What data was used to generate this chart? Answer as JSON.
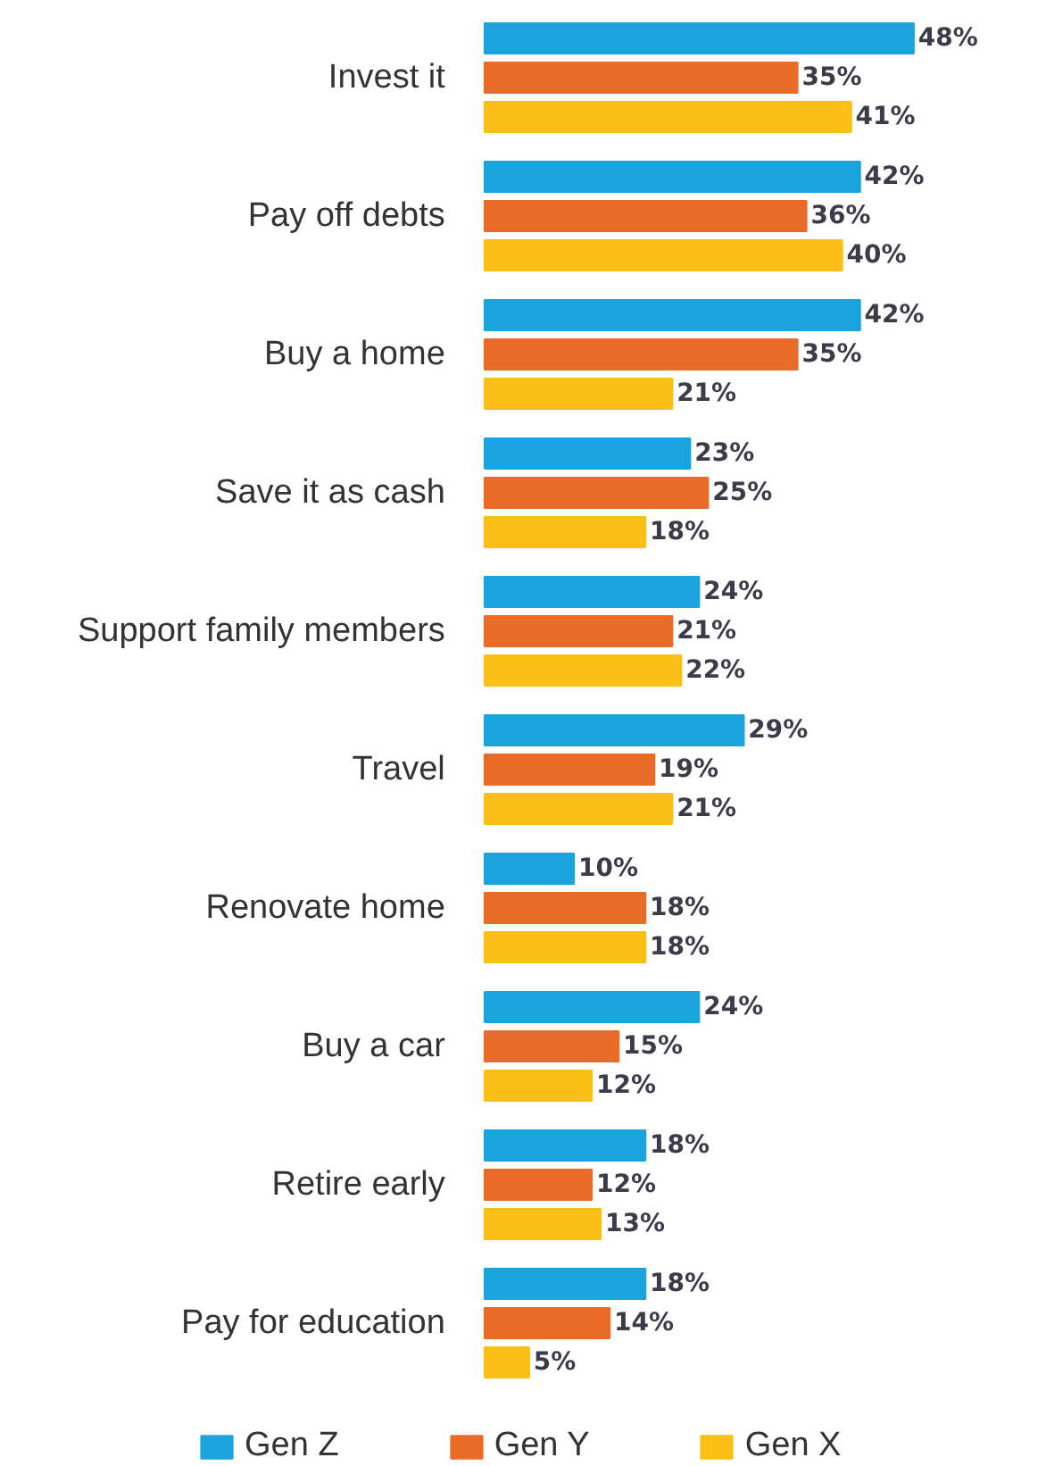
{
  "chart_data": {
    "type": "bar",
    "orientation": "horizontal",
    "legend": "bottom",
    "grid": false,
    "categories": [
      "Invest it",
      "Pay off debts",
      "Buy a home",
      "Save it as cash",
      "Support family members",
      "Travel",
      "Renovate home",
      "Buy a car",
      "Retire early",
      "Pay for education"
    ],
    "series": [
      {
        "name": "Gen Z",
        "color": "#1ba3dd",
        "values": [
          48,
          42,
          42,
          23,
          24,
          29,
          10,
          24,
          18,
          18
        ],
        "value_labels": [
          "48%",
          "42%",
          "42%",
          "23%",
          "24%",
          "29%",
          "10%",
          "24%",
          "18%",
          "18%"
        ]
      },
      {
        "name": "Gen Y",
        "color": "#e96b28",
        "values": [
          35,
          36,
          35,
          25,
          21,
          19,
          18,
          15,
          12,
          14
        ],
        "value_labels": [
          "35%",
          "36%",
          "35%",
          "25%",
          "21%",
          "19%",
          "18%",
          "15%",
          "12%",
          "14%"
        ]
      },
      {
        "name": "Gen X",
        "color": "#fbbf15",
        "values": [
          41,
          40,
          21,
          18,
          22,
          21,
          18,
          12,
          13,
          5
        ],
        "value_labels": [
          "41%",
          "40%",
          "21%",
          "18%",
          "22%",
          "21%",
          "18%",
          "12%",
          "13%",
          "5%"
        ]
      }
    ]
  }
}
